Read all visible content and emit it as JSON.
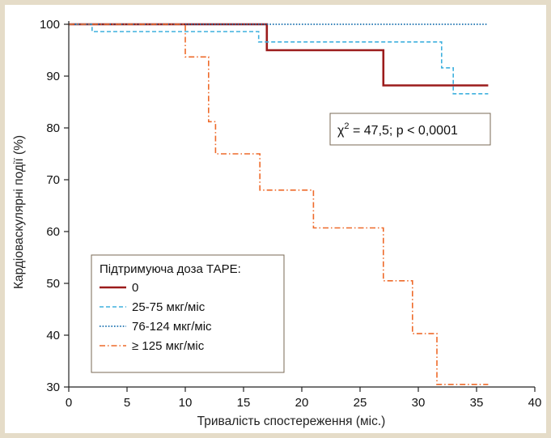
{
  "chart_data": {
    "type": "line",
    "title": "",
    "xlabel": "Тривалість спостереження (міс.)",
    "ylabel": "Кардіоваскулярні події (%)",
    "xlim": [
      0,
      40
    ],
    "ylim": [
      30,
      100
    ],
    "xticks": [
      0,
      5,
      10,
      15,
      20,
      25,
      30,
      35,
      40
    ],
    "yticks": [
      30,
      40,
      50,
      60,
      70,
      80,
      90,
      100
    ],
    "grid": false,
    "legend": {
      "title": "Підтримуюча доза ТАРЕ:",
      "placement": "bottom-left"
    },
    "annotation": {
      "text_prefix": "χ",
      "superscript": "2",
      "text_suffix": " = 47,5; p < 0,0001"
    },
    "series": [
      {
        "name": "0",
        "color": "#9b1b1b",
        "style": "solid",
        "x": [
          0,
          17,
          17,
          27,
          27,
          36
        ],
        "y": [
          100,
          100,
          95,
          95,
          88.2,
          88.2
        ]
      },
      {
        "name": "25-75 мкг/міс",
        "color": "#3fb0de",
        "style": "dashed",
        "x": [
          0,
          2,
          2,
          16.3,
          16.3,
          32,
          32,
          33,
          33,
          36
        ],
        "y": [
          100,
          100,
          98.6,
          98.6,
          96.6,
          96.6,
          91.6,
          91.6,
          86.6,
          86.6
        ]
      },
      {
        "name": "76-124 мкг/міс",
        "color": "#1d73b0",
        "style": "dotted",
        "x": [
          0,
          36
        ],
        "y": [
          100,
          100
        ]
      },
      {
        "name": "≥ 125 мкг/міс",
        "color": "#ee6a2a",
        "style": "dashdot",
        "x": [
          0,
          10,
          10,
          12,
          12,
          12.6,
          12.6,
          14,
          14,
          16.4,
          16.4,
          21,
          21,
          27,
          27,
          29.5,
          29.5,
          31.6,
          31.6,
          36
        ],
        "y": [
          100,
          100,
          93.7,
          93.7,
          81.2,
          81.2,
          75,
          75,
          75,
          75,
          68,
          68,
          60.7,
          60.7,
          50.5,
          50.5,
          40.3,
          40.3,
          30.5,
          30.5
        ]
      }
    ]
  }
}
